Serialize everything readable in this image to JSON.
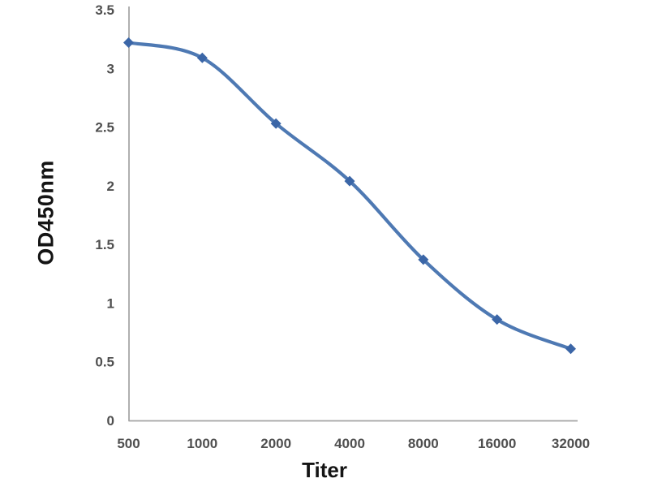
{
  "page": {
    "background_color": "#ffffff"
  },
  "chart_data": {
    "type": "line",
    "title": "",
    "xlabel": "Titer",
    "ylabel": "OD450nm",
    "categories": [
      500,
      1000,
      2000,
      4000,
      8000,
      16000,
      32000
    ],
    "series": [
      {
        "name": "OD450nm",
        "values": [
          3.22,
          3.09,
          2.53,
          2.04,
          1.37,
          0.86,
          0.61
        ]
      }
    ],
    "ylim": [
      0,
      3.5
    ],
    "yticks": [
      3.5,
      3,
      2.5,
      2,
      1.5,
      1,
      0.5,
      0
    ],
    "grid": false,
    "legend_position": "none",
    "smooth_line": true,
    "marker_shape": "diamond",
    "line_color": "#4e79b3",
    "marker_color": "#3b66a7",
    "axis_color": "#a3a3a3",
    "tick_label_color": "#4f4f4f",
    "axis_label_color": "#141414"
  }
}
